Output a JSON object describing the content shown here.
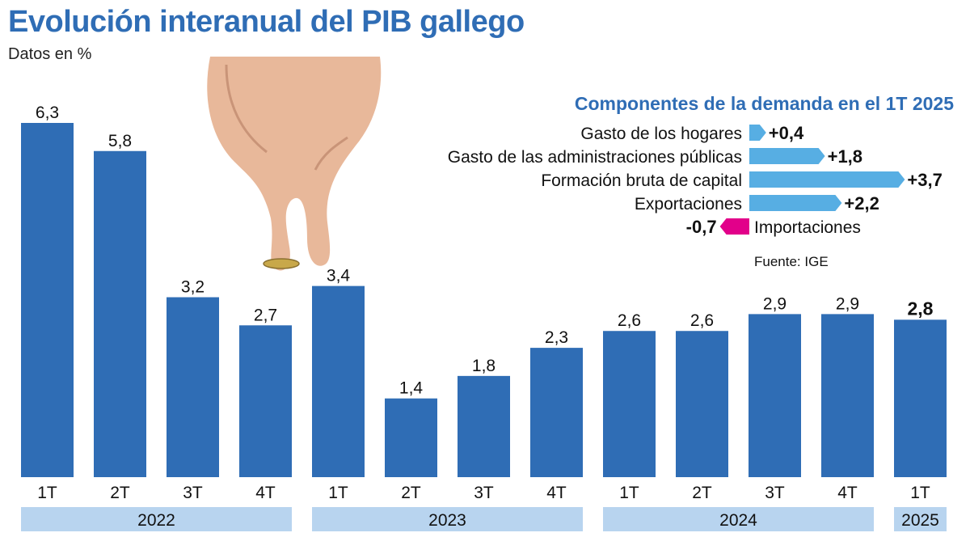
{
  "title": "Evolución interanual del PIB gallego",
  "subtitle": "Datos en %",
  "colors": {
    "bar": "#2f6db5",
    "year_band": "#b8d4ef",
    "positive_arrow": "#57aee3",
    "negative_arrow": "#e2008a",
    "title": "#2f6db5"
  },
  "chart_data": [
    {
      "type": "bar",
      "categories": [
        "1T",
        "2T",
        "3T",
        "4T",
        "1T",
        "2T",
        "3T",
        "4T",
        "1T",
        "2T",
        "3T",
        "4T",
        "1T"
      ],
      "groups": [
        {
          "label": "2022",
          "count": 4
        },
        {
          "label": "2023",
          "count": 4
        },
        {
          "label": "2024",
          "count": 4
        },
        {
          "label": "2025",
          "count": 1
        }
      ],
      "values": [
        6.3,
        5.8,
        3.2,
        2.7,
        3.4,
        1.4,
        1.8,
        2.3,
        2.6,
        2.6,
        2.9,
        2.9,
        2.8
      ],
      "value_labels": [
        "6,3",
        "5,8",
        "3,2",
        "2,7",
        "3,4",
        "1,4",
        "1,8",
        "2,3",
        "2,6",
        "2,6",
        "2,9",
        "2,9",
        "2,8"
      ],
      "highlight_last": true,
      "ylim": [
        0,
        6.3
      ],
      "grid": false
    },
    {
      "type": "bar",
      "orientation": "horizontal",
      "title": "Componentes de la demanda en el 1T 2025",
      "categories": [
        "Gasto de los hogares",
        "Gasto de las administraciones públicas",
        "Formación bruta de capital",
        "Exportaciones",
        "Importaciones"
      ],
      "values": [
        0.4,
        1.8,
        3.7,
        2.2,
        -0.7
      ],
      "value_labels": [
        "+0,4",
        "+1,8",
        "+3,7",
        "+2,2",
        "-0,7"
      ],
      "source": "Fuente: IGE"
    }
  ]
}
